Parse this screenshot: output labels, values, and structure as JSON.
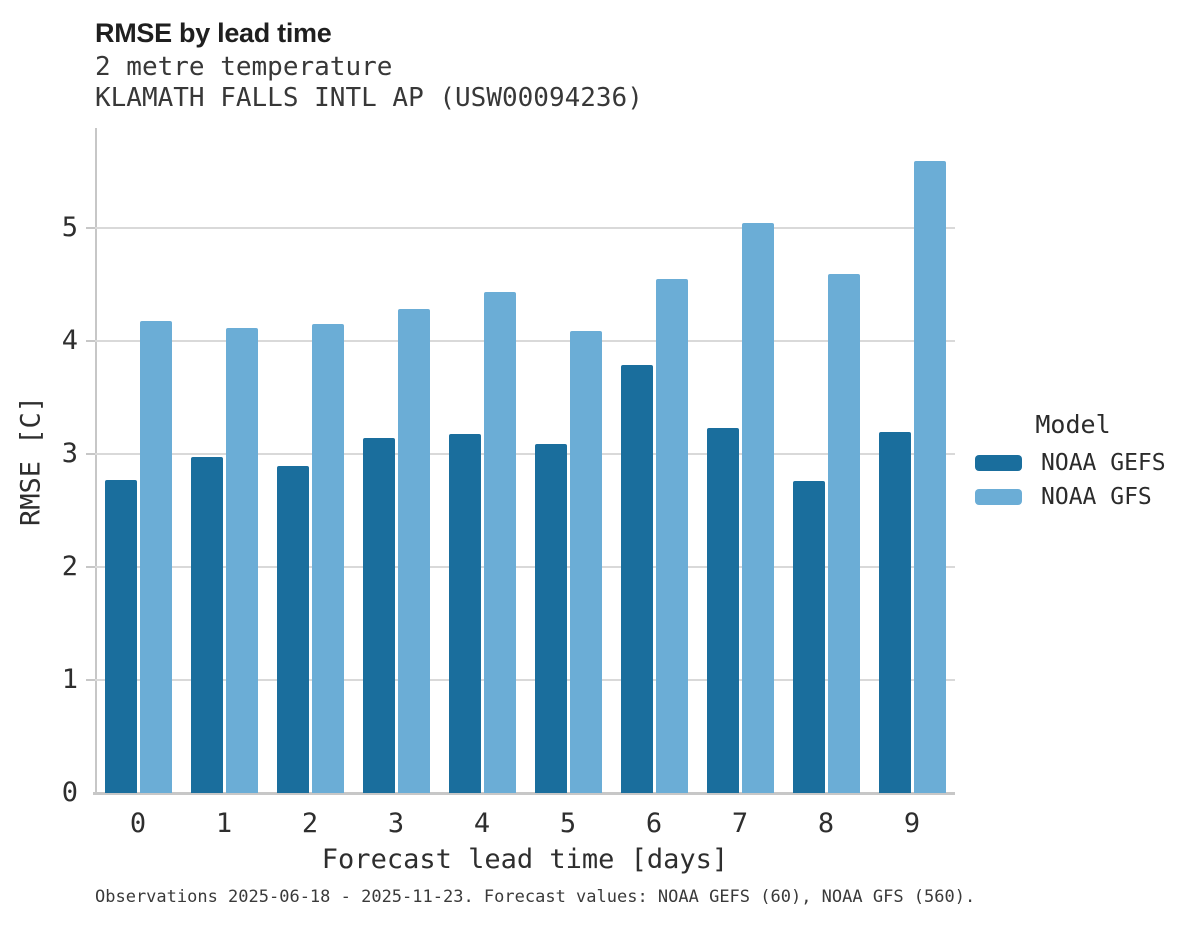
{
  "header": {
    "title": "RMSE by lead time",
    "subtitle": "2 metre temperature",
    "station": "KLAMATH FALLS INTL AP (USW00094236)"
  },
  "legend": {
    "title": "Model",
    "entries": [
      {
        "label": "NOAA GEFS",
        "color": "#1a6e9d"
      },
      {
        "label": "NOAA GFS",
        "color": "#6badd6"
      }
    ]
  },
  "footer": {
    "text": "Observations 2025-06-18 - 2025-11-23. Forecast values: NOAA GEFS (60), NOAA GFS (560)."
  },
  "chart_data": {
    "type": "bar",
    "title": "RMSE by lead time",
    "subtitle": "2 metre temperature",
    "station": "KLAMATH FALLS INTL AP (USW00094236)",
    "xlabel": "Forecast lead time [days]",
    "ylabel": "RMSE [C]",
    "categories": [
      "0",
      "1",
      "2",
      "3",
      "4",
      "5",
      "6",
      "7",
      "8",
      "9"
    ],
    "series": [
      {
        "name": "NOAA GEFS",
        "color": "#1a6e9d",
        "values": [
          2.77,
          2.98,
          2.9,
          3.14,
          3.18,
          3.09,
          3.79,
          3.23,
          2.76,
          3.2
        ]
      },
      {
        "name": "NOAA GFS",
        "color": "#6badd6",
        "values": [
          4.18,
          4.12,
          4.15,
          4.29,
          4.44,
          4.09,
          4.55,
          5.05,
          4.6,
          5.6
        ]
      }
    ],
    "yticks": [
      0,
      1,
      2,
      3,
      4,
      5
    ],
    "ylim": [
      0,
      5.89
    ],
    "grid": "horizontal",
    "gridline_color": "#d9d9d9",
    "axis_color": "#c7c7c7",
    "legend_position": "right"
  }
}
